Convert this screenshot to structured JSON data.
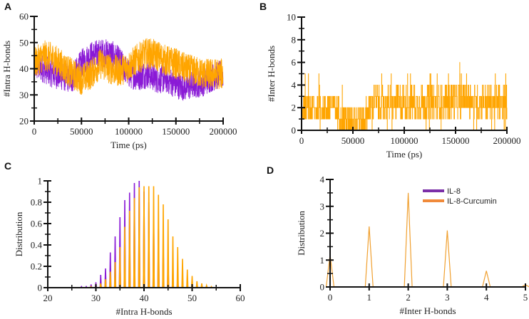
{
  "colors": {
    "il8": "#8a1ad6",
    "curcumin": "#ffa500",
    "curcumin_line": "#f0a030",
    "axis": "#111111"
  },
  "legend": {
    "items": [
      {
        "label": "IL-8",
        "color": "#7b2fa8"
      },
      {
        "label": "IL-8-Curcumin",
        "color": "#f08a3a"
      }
    ],
    "placement": "top-right of panel D"
  },
  "chart_data": [
    {
      "panel": "A",
      "type": "line",
      "xlabel": "Time (ps)",
      "ylabel": "#Intra H-bonds",
      "xlim": [
        0,
        200000
      ],
      "ylim": [
        20,
        60
      ],
      "xticks": [
        0,
        50000,
        100000,
        150000,
        200000
      ],
      "xminor": [
        25000,
        75000,
        125000,
        175000
      ],
      "yticks": [
        20,
        30,
        40,
        50,
        60
      ],
      "yminor": [
        25,
        35,
        45,
        55
      ],
      "series": [
        {
          "name": "IL-8",
          "color": "#8a1ad6",
          "spread": 5.5,
          "x": [
            0,
            10000,
            20000,
            30000,
            40000,
            50000,
            60000,
            70000,
            80000,
            90000,
            100000,
            110000,
            120000,
            130000,
            140000,
            150000,
            160000,
            170000,
            180000,
            190000,
            200000
          ],
          "y_mean": [
            41,
            40,
            38,
            37,
            36,
            42,
            45,
            46,
            46,
            43,
            38,
            37,
            38,
            36,
            36,
            34,
            33,
            34,
            35,
            37,
            38
          ]
        },
        {
          "name": "IL-8-Curcumin",
          "color": "#ffa500",
          "spread": 6,
          "x": [
            0,
            10000,
            20000,
            30000,
            40000,
            50000,
            60000,
            70000,
            80000,
            90000,
            100000,
            110000,
            120000,
            130000,
            140000,
            150000,
            160000,
            170000,
            180000,
            190000,
            200000
          ],
          "y_mean": [
            42,
            45,
            44,
            41,
            38,
            36,
            38,
            42,
            40,
            39,
            41,
            44,
            46,
            45,
            43,
            42,
            40,
            39,
            38,
            38,
            38
          ]
        }
      ]
    },
    {
      "panel": "B",
      "type": "line",
      "xlabel": "Time (ps)",
      "ylabel": "#Inter H-bonds",
      "xlim": [
        0,
        200000
      ],
      "ylim": [
        0,
        10
      ],
      "xticks": [
        0,
        50000,
        100000,
        150000,
        200000
      ],
      "xminor": [
        25000,
        75000,
        125000,
        175000
      ],
      "yticks": [
        0,
        2,
        4,
        6,
        8,
        10
      ],
      "yminor": [
        1,
        3,
        5,
        7,
        9
      ],
      "series": [
        {
          "name": "IL-8-Curcumin",
          "color": "#ffa500",
          "spread": 1.4,
          "x": [
            0,
            10000,
            20000,
            30000,
            40000,
            50000,
            60000,
            70000,
            80000,
            90000,
            100000,
            110000,
            120000,
            130000,
            140000,
            150000,
            160000,
            170000,
            180000,
            190000,
            200000
          ],
          "y_mean": [
            2,
            2,
            1.8,
            2.2,
            1,
            1,
            1,
            2.5,
            2.4,
            2.3,
            2.5,
            2.4,
            2.4,
            2.5,
            2.5,
            2.6,
            3,
            2.4,
            2.5,
            2.3,
            2.5
          ]
        }
      ]
    },
    {
      "panel": "C",
      "type": "line",
      "xlabel": "#Intra H-bonds",
      "ylabel": "Distribution",
      "xlim": [
        20,
        60
      ],
      "ylim": [
        0,
        1
      ],
      "xticks": [
        20,
        30,
        40,
        50,
        60
      ],
      "xminor": [
        25,
        35,
        45,
        55
      ],
      "yticks": [
        0,
        0.2,
        0.4,
        0.6,
        0.8,
        1
      ],
      "ytick_labels": [
        "0",
        "0.2",
        "0.4",
        "0.6",
        "0.8",
        "1"
      ],
      "yminor": [
        0.1,
        0.3,
        0.5,
        0.7,
        0.9
      ],
      "series": [
        {
          "name": "IL-8",
          "color": "#8a1ad6",
          "x": [
            27,
            28,
            29,
            30,
            31,
            32,
            33,
            34,
            35,
            36,
            37,
            38,
            39,
            40,
            41,
            42,
            43,
            44,
            45,
            46,
            47,
            48,
            49
          ],
          "y": [
            0.01,
            0.01,
            0.03,
            0.05,
            0.12,
            0.18,
            0.33,
            0.48,
            0.66,
            0.82,
            0.89,
            0.98,
            1.0,
            0.9,
            0.8,
            0.7,
            0.55,
            0.4,
            0.28,
            0.18,
            0.1,
            0.05,
            0.02
          ]
        },
        {
          "name": "IL-8-Curcumin",
          "color": "#ffa500",
          "x": [
            29,
            30,
            31,
            32,
            33,
            34,
            35,
            36,
            37,
            38,
            39,
            40,
            41,
            42,
            43,
            44,
            45,
            46,
            47,
            48,
            49,
            50,
            51,
            52,
            53,
            54
          ],
          "y": [
            0.01,
            0.02,
            0.04,
            0.08,
            0.15,
            0.24,
            0.38,
            0.57,
            0.72,
            0.84,
            0.94,
            0.95,
            0.95,
            0.95,
            0.87,
            0.78,
            0.64,
            0.48,
            0.38,
            0.27,
            0.17,
            0.11,
            0.06,
            0.04,
            0.02,
            0.01
          ]
        }
      ]
    },
    {
      "panel": "D",
      "type": "line",
      "xlabel": "#Inter H-bonds",
      "ylabel": "Distribution",
      "xlim": [
        0,
        5
      ],
      "ylim": [
        0,
        4
      ],
      "xticks": [
        0,
        1,
        2,
        3,
        4,
        5
      ],
      "xminor": [],
      "yticks": [
        0,
        1,
        2,
        3,
        4
      ],
      "yminor": [
        0.5,
        1.5,
        2.5,
        3.5
      ],
      "series": [
        {
          "name": "IL-8-Curcumin",
          "color": "#f0a030",
          "x": [
            0,
            1,
            2,
            3,
            4,
            5
          ],
          "y": [
            1.2,
            2.25,
            3.5,
            2.1,
            0.6,
            0.08
          ]
        }
      ]
    }
  ]
}
